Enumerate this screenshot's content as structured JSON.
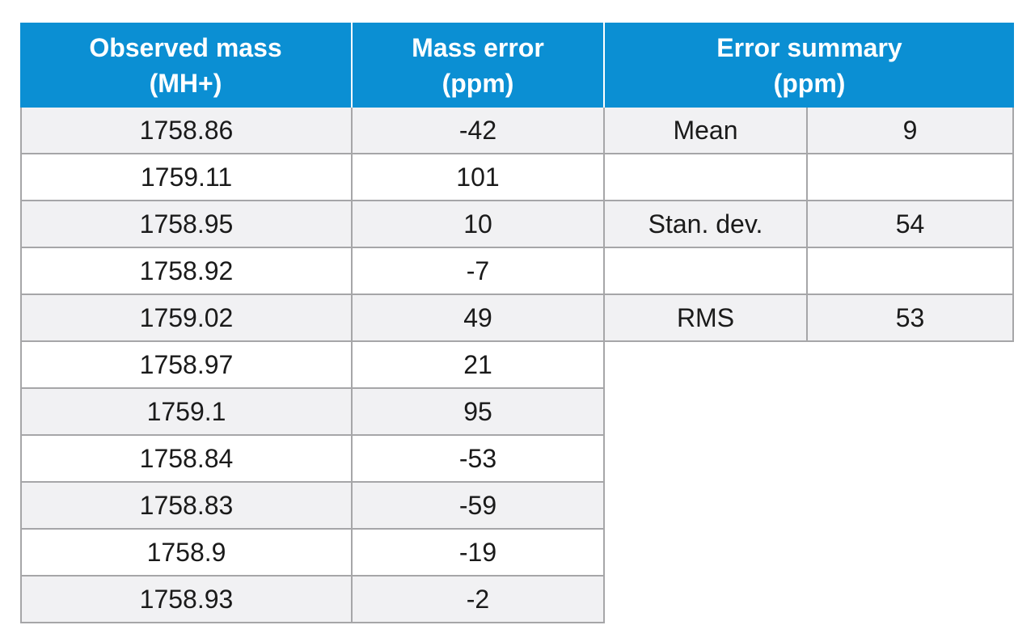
{
  "table": {
    "headers": {
      "observed_mass": [
        "Observed mass",
        "(MH+)"
      ],
      "mass_error": [
        "Mass error",
        "(ppm)"
      ],
      "error_summary": [
        "Error summary",
        "(ppm)"
      ]
    },
    "rows": [
      {
        "mass": "1758.86",
        "error": "-42"
      },
      {
        "mass": "1759.11",
        "error": "101"
      },
      {
        "mass": "1758.95",
        "error": "10"
      },
      {
        "mass": "1758.92",
        "error": "-7"
      },
      {
        "mass": "1759.02",
        "error": "49"
      },
      {
        "mass": "1758.97",
        "error": "21"
      },
      {
        "mass": "1759.1",
        "error": "95"
      },
      {
        "mass": "1758.84",
        "error": "-53"
      },
      {
        "mass": "1758.83",
        "error": "-59"
      },
      {
        "mass": "1758.9",
        "error": "-19"
      },
      {
        "mass": "1758.93",
        "error": "-2"
      }
    ],
    "summary": [
      {
        "label": "Mean",
        "value": "9"
      },
      {
        "label": "",
        "value": ""
      },
      {
        "label": "Stan. dev.",
        "value": "54"
      },
      {
        "label": "",
        "value": ""
      },
      {
        "label": "RMS",
        "value": "53"
      }
    ]
  },
  "colors": {
    "header_bg": "#0b8fd3",
    "header_text": "#ffffff",
    "row_shade": "#f1f1f3",
    "grid": "#a6a6a8"
  }
}
